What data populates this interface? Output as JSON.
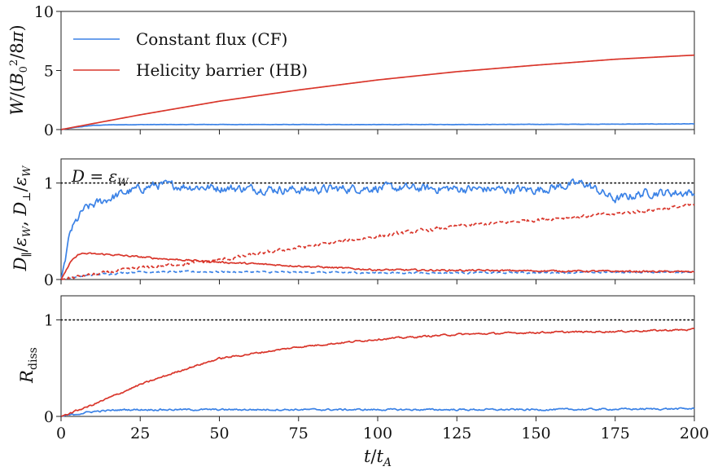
{
  "colors": {
    "cf": "#3b82e6",
    "hb": "#d9362b",
    "axis": "#222222",
    "reference": "#111111"
  },
  "chart_data": {
    "type": "line",
    "shared_x": {
      "label": "t/t_A",
      "xlim": [
        0,
        200
      ],
      "ticks": [
        0,
        25,
        50,
        75,
        100,
        125,
        150,
        175,
        200
      ]
    },
    "legend": {
      "placement": "upper-left (top panel)",
      "entries": [
        {
          "label": "Constant flux (CF)",
          "color_key": "cf"
        },
        {
          "label": "Helicity barrier (HB)",
          "color_key": "hb"
        }
      ]
    },
    "panels": [
      {
        "id": "energy",
        "ylabel": "W/(B_0^2/8π)",
        "ylim": [
          0,
          10
        ],
        "yticks": [
          0,
          5,
          10
        ],
        "series": [
          {
            "name": "Constant flux (CF)",
            "color_key": "cf",
            "style": "solid",
            "noise": 0.015,
            "points": [
              [
                0,
                0
              ],
              [
                5,
                0.2
              ],
              [
                10,
                0.35
              ],
              [
                15,
                0.4
              ],
              [
                25,
                0.42
              ],
              [
                50,
                0.43
              ],
              [
                100,
                0.42
              ],
              [
                150,
                0.44
              ],
              [
                200,
                0.48
              ]
            ]
          },
          {
            "name": "Helicity barrier (HB)",
            "color_key": "hb",
            "style": "solid",
            "noise": 0,
            "points": [
              [
                0,
                0
              ],
              [
                25,
                1.25
              ],
              [
                50,
                2.4
              ],
              [
                75,
                3.35
              ],
              [
                100,
                4.2
              ],
              [
                125,
                4.9
              ],
              [
                150,
                5.45
              ],
              [
                175,
                5.95
              ],
              [
                200,
                6.3
              ]
            ]
          }
        ]
      },
      {
        "id": "dissipation",
        "ylabel": "D_∥/ε_W, D_⊥/ε_W",
        "ylim": [
          0,
          1.25
        ],
        "yticks": [
          0,
          1
        ],
        "reference_line": {
          "y": 1,
          "label": "D = ε_W"
        },
        "series": [
          {
            "name": "CF D_⊥",
            "color_key": "cf",
            "style": "solid",
            "noise": 0.05,
            "points": [
              [
                0,
                0
              ],
              [
                3,
                0.5
              ],
              [
                7,
                0.72
              ],
              [
                12,
                0.8
              ],
              [
                20,
                0.9
              ],
              [
                30,
                0.98
              ],
              [
                50,
                0.95
              ],
              [
                75,
                0.93
              ],
              [
                100,
                0.95
              ],
              [
                125,
                0.94
              ],
              [
                150,
                0.93
              ],
              [
                165,
                1.0
              ],
              [
                175,
                0.83
              ],
              [
                185,
                0.9
              ],
              [
                200,
                0.9
              ]
            ]
          },
          {
            "name": "CF D_∥",
            "color_key": "cf",
            "style": "dashed",
            "noise": 0.01,
            "points": [
              [
                0,
                0
              ],
              [
                10,
                0.05
              ],
              [
                25,
                0.08
              ],
              [
                50,
                0.08
              ],
              [
                100,
                0.07
              ],
              [
                150,
                0.07
              ],
              [
                200,
                0.08
              ]
            ]
          },
          {
            "name": "HB D_⊥",
            "color_key": "hb",
            "style": "solid",
            "noise": 0.01,
            "points": [
              [
                0,
                0
              ],
              [
                3,
                0.18
              ],
              [
                6,
                0.27
              ],
              [
                15,
                0.26
              ],
              [
                30,
                0.22
              ],
              [
                50,
                0.18
              ],
              [
                75,
                0.14
              ],
              [
                100,
                0.1
              ],
              [
                150,
                0.09
              ],
              [
                200,
                0.08
              ]
            ]
          },
          {
            "name": "HB D_∥",
            "color_key": "hb",
            "style": "dashed",
            "noise": 0.02,
            "points": [
              [
                0,
                0
              ],
              [
                10,
                0.05
              ],
              [
                25,
                0.12
              ],
              [
                50,
                0.2
              ],
              [
                75,
                0.33
              ],
              [
                100,
                0.45
              ],
              [
                125,
                0.55
              ],
              [
                150,
                0.62
              ],
              [
                175,
                0.68
              ],
              [
                200,
                0.77
              ]
            ]
          }
        ]
      },
      {
        "id": "ratio",
        "ylabel": "R_diss",
        "ylim": [
          0,
          1.25
        ],
        "yticks": [
          0,
          1
        ],
        "reference_line": {
          "y": 1,
          "label": ""
        },
        "series": [
          {
            "name": "Constant flux (CF)",
            "color_key": "cf",
            "style": "solid",
            "noise": 0.01,
            "points": [
              [
                0,
                0
              ],
              [
                10,
                0.05
              ],
              [
                20,
                0.07
              ],
              [
                50,
                0.07
              ],
              [
                100,
                0.07
              ],
              [
                150,
                0.07
              ],
              [
                200,
                0.08
              ]
            ]
          },
          {
            "name": "Helicity barrier (HB)",
            "color_key": "hb",
            "style": "solid",
            "noise": 0.01,
            "points": [
              [
                0,
                0
              ],
              [
                10,
                0.12
              ],
              [
                25,
                0.33
              ],
              [
                40,
                0.5
              ],
              [
                50,
                0.6
              ],
              [
                75,
                0.72
              ],
              [
                100,
                0.8
              ],
              [
                125,
                0.85
              ],
              [
                150,
                0.87
              ],
              [
                175,
                0.88
              ],
              [
                200,
                0.9
              ]
            ]
          }
        ]
      }
    ]
  }
}
